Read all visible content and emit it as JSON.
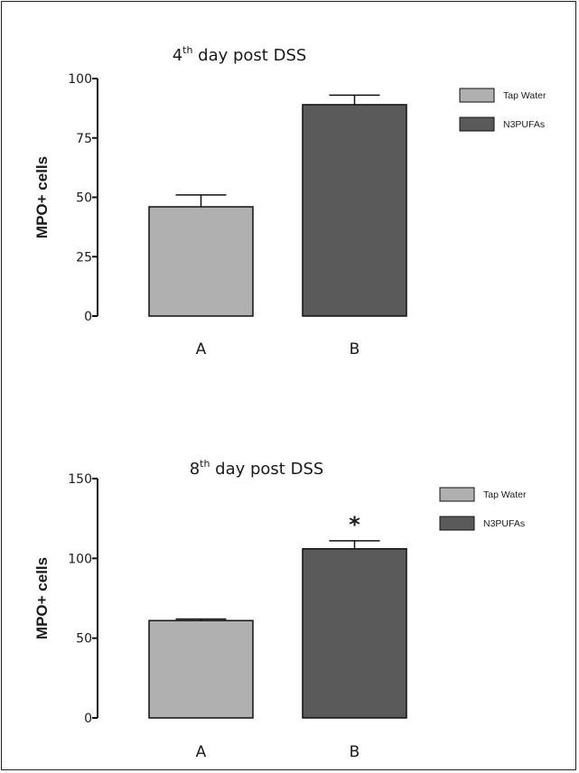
{
  "chart_data": [
    {
      "type": "bar",
      "title": {
        "prefix": "4",
        "sup": "th",
        "rest": " day post DSS"
      },
      "ylabel": "MPO+ cells",
      "xlabel": "",
      "ylim": [
        0,
        100
      ],
      "yticks": [
        0,
        25,
        50,
        75,
        100
      ],
      "categories": [
        "A",
        "B"
      ],
      "values": [
        46,
        89
      ],
      "errors": [
        5,
        4
      ],
      "colors": [
        "#b0b0b0",
        "#5a5a5a"
      ],
      "legend": [
        "Tap Water",
        "N3PUFAs"
      ],
      "legend_position": "top-right",
      "annotations": []
    },
    {
      "type": "bar",
      "title": {
        "prefix": "8",
        "sup": "th",
        "rest": " day post DSS"
      },
      "ylabel": "MPO+ cells",
      "xlabel": "",
      "ylim": [
        0,
        150
      ],
      "yticks": [
        0,
        50,
        100,
        150
      ],
      "categories": [
        "A",
        "B"
      ],
      "values": [
        61,
        106
      ],
      "errors": [
        1,
        5
      ],
      "colors": [
        "#b0b0b0",
        "#5a5a5a"
      ],
      "legend": [
        "Tap Water",
        "N3PUFAs"
      ],
      "legend_position": "top-right",
      "annotations": [
        "",
        "*"
      ]
    }
  ]
}
